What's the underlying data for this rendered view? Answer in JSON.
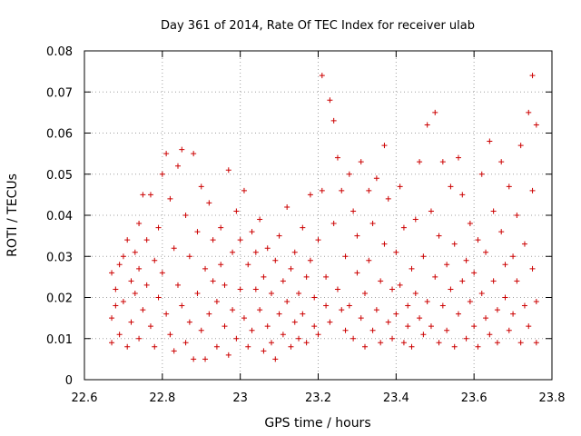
{
  "chart_data": {
    "type": "scatter",
    "title": "Day 361 of 2014, Rate Of TEC Index for receiver ulab",
    "xlabel": "GPS time / hours",
    "ylabel": "ROTI / TECUs",
    "xlim": [
      22.6,
      23.8
    ],
    "ylim": [
      0,
      0.08
    ],
    "xticks": [
      22.6,
      22.8,
      23.0,
      23.2,
      23.4,
      23.6,
      23.8
    ],
    "xtick_labels": [
      "22.6",
      "22.8",
      "23",
      "23.2",
      "23.4",
      "23.6",
      "23.8"
    ],
    "yticks": [
      0,
      0.01,
      0.02,
      0.03,
      0.04,
      0.05,
      0.06,
      0.07,
      0.08
    ],
    "ytick_labels": [
      "0",
      "0.01",
      "0.02",
      "0.03",
      "0.04",
      "0.05",
      "0.06",
      "0.07",
      "0.08"
    ],
    "grid": true,
    "marker": "+",
    "color": "#cc0000",
    "series": [
      {
        "name": "ROTI",
        "points": [
          [
            22.67,
            0.026
          ],
          [
            22.67,
            0.015
          ],
          [
            22.67,
            0.009
          ],
          [
            22.68,
            0.018
          ],
          [
            22.68,
            0.022
          ],
          [
            22.69,
            0.028
          ],
          [
            22.69,
            0.011
          ],
          [
            22.7,
            0.03
          ],
          [
            22.7,
            0.019
          ],
          [
            22.71,
            0.034
          ],
          [
            22.71,
            0.008
          ],
          [
            22.72,
            0.024
          ],
          [
            22.72,
            0.014
          ],
          [
            22.73,
            0.031
          ],
          [
            22.73,
            0.021
          ],
          [
            22.74,
            0.038
          ],
          [
            22.74,
            0.027
          ],
          [
            22.74,
            0.01
          ],
          [
            22.75,
            0.045
          ],
          [
            22.75,
            0.017
          ],
          [
            22.76,
            0.023
          ],
          [
            22.76,
            0.034
          ],
          [
            22.77,
            0.045
          ],
          [
            22.77,
            0.013
          ],
          [
            22.78,
            0.008
          ],
          [
            22.78,
            0.029
          ],
          [
            22.79,
            0.02
          ],
          [
            22.79,
            0.037
          ],
          [
            22.8,
            0.05
          ],
          [
            22.8,
            0.026
          ],
          [
            22.81,
            0.016
          ],
          [
            22.81,
            0.055
          ],
          [
            22.82,
            0.044
          ],
          [
            22.82,
            0.011
          ],
          [
            22.83,
            0.032
          ],
          [
            22.83,
            0.007
          ],
          [
            22.84,
            0.023
          ],
          [
            22.84,
            0.052
          ],
          [
            22.85,
            0.056
          ],
          [
            22.85,
            0.018
          ],
          [
            22.86,
            0.04
          ],
          [
            22.86,
            0.009
          ],
          [
            22.87,
            0.03
          ],
          [
            22.87,
            0.014
          ],
          [
            22.88,
            0.055
          ],
          [
            22.88,
            0.005
          ],
          [
            22.89,
            0.036
          ],
          [
            22.89,
            0.021
          ],
          [
            22.9,
            0.047
          ],
          [
            22.9,
            0.012
          ],
          [
            22.91,
            0.027
          ],
          [
            22.91,
            0.005
          ],
          [
            22.92,
            0.043
          ],
          [
            22.92,
            0.016
          ],
          [
            22.93,
            0.024
          ],
          [
            22.93,
            0.034
          ],
          [
            22.94,
            0.008
          ],
          [
            22.94,
            0.019
          ],
          [
            22.95,
            0.028
          ],
          [
            22.95,
            0.037
          ],
          [
            22.96,
            0.013
          ],
          [
            22.96,
            0.023
          ],
          [
            22.97,
            0.051
          ],
          [
            22.97,
            0.006
          ],
          [
            22.98,
            0.031
          ],
          [
            22.98,
            0.017
          ],
          [
            22.99,
            0.041
          ],
          [
            22.99,
            0.01
          ],
          [
            23.0,
            0.034
          ],
          [
            23.0,
            0.022
          ],
          [
            23.01,
            0.046
          ],
          [
            23.01,
            0.015
          ],
          [
            23.02,
            0.028
          ],
          [
            23.02,
            0.008
          ],
          [
            23.03,
            0.036
          ],
          [
            23.03,
            0.012
          ],
          [
            23.04,
            0.022
          ],
          [
            23.04,
            0.031
          ],
          [
            23.05,
            0.017
          ],
          [
            23.05,
            0.039
          ],
          [
            23.06,
            0.007
          ],
          [
            23.06,
            0.025
          ],
          [
            23.07,
            0.013
          ],
          [
            23.07,
            0.032
          ],
          [
            23.08,
            0.009
          ],
          [
            23.08,
            0.021
          ],
          [
            23.09,
            0.029
          ],
          [
            23.09,
            0.005
          ],
          [
            23.1,
            0.016
          ],
          [
            23.1,
            0.035
          ],
          [
            23.11,
            0.024
          ],
          [
            23.11,
            0.011
          ],
          [
            23.12,
            0.019
          ],
          [
            23.12,
            0.042
          ],
          [
            23.13,
            0.008
          ],
          [
            23.13,
            0.027
          ],
          [
            23.14,
            0.014
          ],
          [
            23.14,
            0.031
          ],
          [
            23.15,
            0.021
          ],
          [
            23.15,
            0.01
          ],
          [
            23.16,
            0.037
          ],
          [
            23.16,
            0.016
          ],
          [
            23.17,
            0.025
          ],
          [
            23.17,
            0.009
          ],
          [
            23.18,
            0.029
          ],
          [
            23.18,
            0.045
          ],
          [
            23.19,
            0.013
          ],
          [
            23.19,
            0.02
          ],
          [
            23.2,
            0.034
          ],
          [
            23.2,
            0.011
          ],
          [
            23.21,
            0.074
          ],
          [
            23.21,
            0.046
          ],
          [
            23.22,
            0.018
          ],
          [
            23.22,
            0.025
          ],
          [
            23.23,
            0.068
          ],
          [
            23.23,
            0.014
          ],
          [
            23.24,
            0.063
          ],
          [
            23.24,
            0.038
          ],
          [
            23.25,
            0.022
          ],
          [
            23.25,
            0.054
          ],
          [
            23.26,
            0.017
          ],
          [
            23.26,
            0.046
          ],
          [
            23.27,
            0.012
          ],
          [
            23.27,
            0.03
          ],
          [
            23.28,
            0.05
          ],
          [
            23.28,
            0.018
          ],
          [
            23.29,
            0.041
          ],
          [
            23.29,
            0.01
          ],
          [
            23.3,
            0.026
          ],
          [
            23.3,
            0.035
          ],
          [
            23.31,
            0.015
          ],
          [
            23.31,
            0.053
          ],
          [
            23.32,
            0.021
          ],
          [
            23.32,
            0.008
          ],
          [
            23.33,
            0.046
          ],
          [
            23.33,
            0.029
          ],
          [
            23.34,
            0.012
          ],
          [
            23.34,
            0.038
          ],
          [
            23.35,
            0.017
          ],
          [
            23.35,
            0.049
          ],
          [
            23.36,
            0.024
          ],
          [
            23.36,
            0.009
          ],
          [
            23.37,
            0.057
          ],
          [
            23.37,
            0.033
          ],
          [
            23.38,
            0.014
          ],
          [
            23.38,
            0.044
          ],
          [
            23.39,
            0.022
          ],
          [
            23.39,
            0.01
          ],
          [
            23.4,
            0.031
          ],
          [
            23.4,
            0.016
          ],
          [
            23.41,
            0.047
          ],
          [
            23.41,
            0.023
          ],
          [
            23.42,
            0.009
          ],
          [
            23.42,
            0.037
          ],
          [
            23.43,
            0.018
          ],
          [
            23.43,
            0.013
          ],
          [
            23.44,
            0.027
          ],
          [
            23.44,
            0.008
          ],
          [
            23.45,
            0.021
          ],
          [
            23.45,
            0.039
          ],
          [
            23.46,
            0.015
          ],
          [
            23.46,
            0.053
          ],
          [
            23.47,
            0.011
          ],
          [
            23.47,
            0.03
          ],
          [
            23.48,
            0.062
          ],
          [
            23.48,
            0.019
          ],
          [
            23.49,
            0.041
          ],
          [
            23.49,
            0.013
          ],
          [
            23.5,
            0.065
          ],
          [
            23.5,
            0.025
          ],
          [
            23.51,
            0.009
          ],
          [
            23.51,
            0.035
          ],
          [
            23.52,
            0.053
          ],
          [
            23.52,
            0.018
          ],
          [
            23.53,
            0.028
          ],
          [
            23.53,
            0.012
          ],
          [
            23.54,
            0.047
          ],
          [
            23.54,
            0.022
          ],
          [
            23.55,
            0.008
          ],
          [
            23.55,
            0.033
          ],
          [
            23.56,
            0.054
          ],
          [
            23.56,
            0.016
          ],
          [
            23.57,
            0.045
          ],
          [
            23.57,
            0.024
          ],
          [
            23.58,
            0.01
          ],
          [
            23.58,
            0.029
          ],
          [
            23.59,
            0.019
          ],
          [
            23.59,
            0.038
          ],
          [
            23.6,
            0.013
          ],
          [
            23.6,
            0.026
          ],
          [
            23.61,
            0.008
          ],
          [
            23.61,
            0.034
          ],
          [
            23.62,
            0.021
          ],
          [
            23.62,
            0.05
          ],
          [
            23.63,
            0.015
          ],
          [
            23.63,
            0.031
          ],
          [
            23.64,
            0.058
          ],
          [
            23.64,
            0.011
          ],
          [
            23.65,
            0.024
          ],
          [
            23.65,
            0.041
          ],
          [
            23.66,
            0.017
          ],
          [
            23.66,
            0.009
          ],
          [
            23.67,
            0.036
          ],
          [
            23.67,
            0.053
          ],
          [
            23.68,
            0.02
          ],
          [
            23.68,
            0.028
          ],
          [
            23.69,
            0.012
          ],
          [
            23.69,
            0.047
          ],
          [
            23.7,
            0.03
          ],
          [
            23.7,
            0.016
          ],
          [
            23.71,
            0.04
          ],
          [
            23.71,
            0.024
          ],
          [
            23.72,
            0.009
          ],
          [
            23.72,
            0.057
          ],
          [
            23.73,
            0.018
          ],
          [
            23.73,
            0.033
          ],
          [
            23.74,
            0.065
          ],
          [
            23.74,
            0.013
          ],
          [
            23.75,
            0.074
          ],
          [
            23.75,
            0.027
          ],
          [
            23.75,
            0.046
          ],
          [
            23.76,
            0.062
          ],
          [
            23.76,
            0.019
          ],
          [
            23.76,
            0.009
          ]
        ]
      }
    ]
  }
}
